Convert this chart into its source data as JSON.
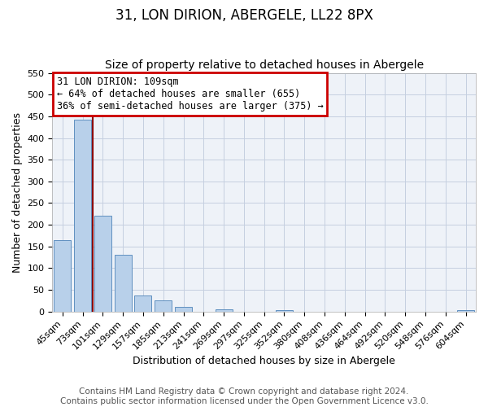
{
  "title": "31, LON DIRION, ABERGELE, LL22 8PX",
  "subtitle": "Size of property relative to detached houses in Abergele",
  "xlabel": "Distribution of detached houses by size in Abergele",
  "ylabel": "Number of detached properties",
  "bar_labels": [
    "45sqm",
    "73sqm",
    "101sqm",
    "129sqm",
    "157sqm",
    "185sqm",
    "213sqm",
    "241sqm",
    "269sqm",
    "297sqm",
    "325sqm",
    "352sqm",
    "380sqm",
    "408sqm",
    "436sqm",
    "464sqm",
    "492sqm",
    "520sqm",
    "548sqm",
    "576sqm",
    "604sqm"
  ],
  "bar_values": [
    165,
    443,
    220,
    130,
    37,
    26,
    10,
    0,
    6,
    0,
    0,
    4,
    0,
    0,
    0,
    0,
    0,
    0,
    0,
    0,
    4
  ],
  "bar_color": "#b8d0ea",
  "bar_edge_color": "#6090c0",
  "ylim": [
    0,
    550
  ],
  "yticks": [
    0,
    50,
    100,
    150,
    200,
    250,
    300,
    350,
    400,
    450,
    500,
    550
  ],
  "vline_color": "#8b0000",
  "annotation_box_text": "31 LON DIRION: 109sqm\n← 64% of detached houses are smaller (655)\n36% of semi-detached houses are larger (375) →",
  "annotation_box_color": "#cc0000",
  "footer_line1": "Contains HM Land Registry data © Crown copyright and database right 2024.",
  "footer_line2": "Contains public sector information licensed under the Open Government Licence v3.0.",
  "bg_color": "#eef2f8",
  "grid_color": "#c5cfe0",
  "title_fontsize": 12,
  "subtitle_fontsize": 10,
  "axis_label_fontsize": 9,
  "tick_fontsize": 8,
  "footer_fontsize": 7.5
}
